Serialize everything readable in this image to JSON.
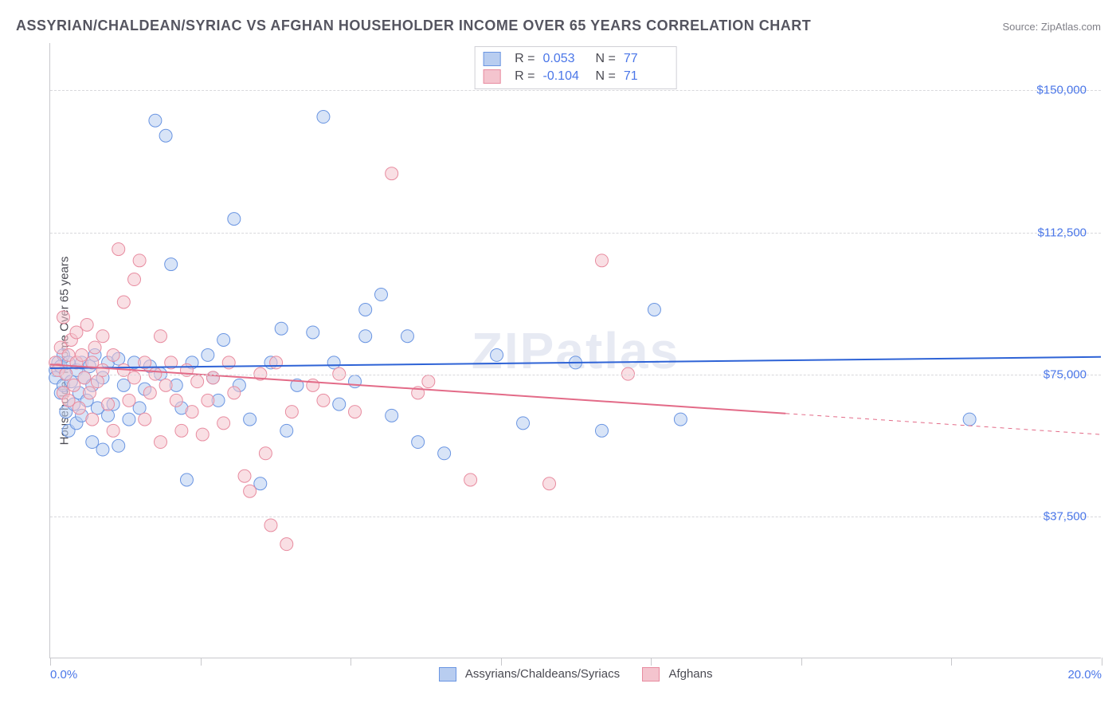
{
  "title": "ASSYRIAN/CHALDEAN/SYRIAC VS AFGHAN HOUSEHOLDER INCOME OVER 65 YEARS CORRELATION CHART",
  "source_label": "Source: ZipAtlas.com",
  "watermark_text": "ZIPatlas",
  "ylabel": "Householder Income Over 65 years",
  "chart": {
    "type": "scatter",
    "xlim": [
      0,
      20
    ],
    "ylim": [
      0,
      162500
    ],
    "xunit": "%",
    "xtick_labels": [
      "0.0%",
      "20.0%"
    ],
    "xtick_positions": [
      0,
      20
    ],
    "xtick_minor_positions": [
      0,
      2.86,
      5.71,
      8.57,
      11.43,
      14.29,
      17.14,
      20
    ],
    "ytick_labels": [
      "$37,500",
      "$75,000",
      "$112,500",
      "$150,000"
    ],
    "ytick_positions": [
      37500,
      75000,
      112500,
      150000
    ],
    "background_color": "#ffffff",
    "grid_color": "#d8d8dc",
    "grid_style": "dashed",
    "axis_color": "#c8c8cc",
    "axis_label_color": "#4a76e8",
    "title_color": "#555560",
    "title_fontsize": 18,
    "label_fontsize": 15,
    "marker_radius": 8,
    "marker_opacity": 0.55,
    "line_width": 2,
    "series": [
      {
        "name": "Assyrians/Chaldeans/Syriacs",
        "color_fill": "#b8cdf0",
        "color_stroke": "#6a95e2",
        "line_color": "#2e63d6",
        "R": "0.053",
        "N": "77",
        "trend_line": {
          "x1": 0,
          "y1": 76500,
          "x2": 20,
          "y2": 79500
        },
        "trend_dash_from_x": null,
        "points": [
          [
            0.1,
            76000
          ],
          [
            0.1,
            74000
          ],
          [
            0.15,
            78000
          ],
          [
            0.2,
            70000
          ],
          [
            0.2,
            77000
          ],
          [
            0.25,
            72000
          ],
          [
            0.25,
            80000
          ],
          [
            0.3,
            65000
          ],
          [
            0.3,
            75000
          ],
          [
            0.35,
            60000
          ],
          [
            0.35,
            78000
          ],
          [
            0.4,
            73000
          ],
          [
            0.45,
            67000
          ],
          [
            0.5,
            62000
          ],
          [
            0.5,
            76000
          ],
          [
            0.55,
            70000
          ],
          [
            0.6,
            64000
          ],
          [
            0.6,
            78000
          ],
          [
            0.65,
            74000
          ],
          [
            0.7,
            68000
          ],
          [
            0.75,
            77000
          ],
          [
            0.8,
            57000
          ],
          [
            0.8,
            72000
          ],
          [
            0.85,
            80000
          ],
          [
            0.9,
            66000
          ],
          [
            1.0,
            55000
          ],
          [
            1.0,
            74000
          ],
          [
            1.1,
            64000
          ],
          [
            1.1,
            78000
          ],
          [
            1.2,
            67000
          ],
          [
            1.3,
            56000
          ],
          [
            1.3,
            79000
          ],
          [
            1.4,
            72000
          ],
          [
            1.5,
            63000
          ],
          [
            1.6,
            78000
          ],
          [
            1.7,
            66000
          ],
          [
            1.8,
            71000
          ],
          [
            1.9,
            77000
          ],
          [
            2.0,
            142000
          ],
          [
            2.1,
            75000
          ],
          [
            2.2,
            138000
          ],
          [
            2.3,
            104000
          ],
          [
            2.4,
            72000
          ],
          [
            2.5,
            66000
          ],
          [
            2.6,
            47000
          ],
          [
            2.7,
            78000
          ],
          [
            3.0,
            80000
          ],
          [
            3.1,
            74000
          ],
          [
            3.2,
            68000
          ],
          [
            3.3,
            84000
          ],
          [
            3.5,
            116000
          ],
          [
            3.6,
            72000
          ],
          [
            3.8,
            63000
          ],
          [
            4.0,
            46000
          ],
          [
            4.2,
            78000
          ],
          [
            4.4,
            87000
          ],
          [
            4.5,
            60000
          ],
          [
            4.7,
            72000
          ],
          [
            5.0,
            86000
          ],
          [
            5.2,
            143000
          ],
          [
            5.4,
            78000
          ],
          [
            5.5,
            67000
          ],
          [
            5.8,
            73000
          ],
          [
            6.0,
            85000
          ],
          [
            6.0,
            92000
          ],
          [
            6.3,
            96000
          ],
          [
            6.5,
            64000
          ],
          [
            6.8,
            85000
          ],
          [
            7.0,
            57000
          ],
          [
            7.5,
            54000
          ],
          [
            8.5,
            80000
          ],
          [
            9.0,
            62000
          ],
          [
            10.0,
            78000
          ],
          [
            10.5,
            60000
          ],
          [
            11.5,
            92000
          ],
          [
            12.0,
            63000
          ],
          [
            17.5,
            63000
          ]
        ]
      },
      {
        "name": "Afghans",
        "color_fill": "#f4c4ce",
        "color_stroke": "#e88ca0",
        "line_color": "#e36b88",
        "R": "-0.104",
        "N": "71",
        "trend_line": {
          "x1": 0,
          "y1": 77500,
          "x2": 20,
          "y2": 59000
        },
        "trend_dash_from_x": 14,
        "points": [
          [
            0.1,
            78000
          ],
          [
            0.15,
            76000
          ],
          [
            0.2,
            82000
          ],
          [
            0.25,
            70000
          ],
          [
            0.25,
            90000
          ],
          [
            0.3,
            75000
          ],
          [
            0.35,
            80000
          ],
          [
            0.35,
            68000
          ],
          [
            0.4,
            84000
          ],
          [
            0.45,
            72000
          ],
          [
            0.5,
            86000
          ],
          [
            0.5,
            78000
          ],
          [
            0.55,
            66000
          ],
          [
            0.6,
            80000
          ],
          [
            0.65,
            74000
          ],
          [
            0.7,
            88000
          ],
          [
            0.75,
            70000
          ],
          [
            0.8,
            78000
          ],
          [
            0.8,
            63000
          ],
          [
            0.85,
            82000
          ],
          [
            0.9,
            73000
          ],
          [
            1.0,
            76000
          ],
          [
            1.0,
            85000
          ],
          [
            1.1,
            67000
          ],
          [
            1.2,
            80000
          ],
          [
            1.2,
            60000
          ],
          [
            1.3,
            108000
          ],
          [
            1.4,
            76000
          ],
          [
            1.4,
            94000
          ],
          [
            1.5,
            68000
          ],
          [
            1.6,
            100000
          ],
          [
            1.6,
            74000
          ],
          [
            1.7,
            105000
          ],
          [
            1.8,
            63000
          ],
          [
            1.8,
            78000
          ],
          [
            1.9,
            70000
          ],
          [
            2.0,
            75000
          ],
          [
            2.1,
            85000
          ],
          [
            2.1,
            57000
          ],
          [
            2.2,
            72000
          ],
          [
            2.3,
            78000
          ],
          [
            2.4,
            68000
          ],
          [
            2.5,
            60000
          ],
          [
            2.6,
            76000
          ],
          [
            2.7,
            65000
          ],
          [
            2.8,
            73000
          ],
          [
            2.9,
            59000
          ],
          [
            3.0,
            68000
          ],
          [
            3.1,
            74000
          ],
          [
            3.3,
            62000
          ],
          [
            3.4,
            78000
          ],
          [
            3.5,
            70000
          ],
          [
            3.7,
            48000
          ],
          [
            3.8,
            44000
          ],
          [
            4.0,
            75000
          ],
          [
            4.1,
            54000
          ],
          [
            4.2,
            35000
          ],
          [
            4.3,
            78000
          ],
          [
            4.5,
            30000
          ],
          [
            4.6,
            65000
          ],
          [
            5.0,
            72000
          ],
          [
            5.2,
            68000
          ],
          [
            5.5,
            75000
          ],
          [
            5.8,
            65000
          ],
          [
            6.5,
            128000
          ],
          [
            7.0,
            70000
          ],
          [
            7.2,
            73000
          ],
          [
            8.0,
            47000
          ],
          [
            9.5,
            46000
          ],
          [
            10.5,
            105000
          ],
          [
            11.0,
            75000
          ]
        ]
      }
    ]
  },
  "bottom_legend": {
    "items": [
      {
        "label": "Assyrians/Chaldeans/Syriacs",
        "fill": "#b8cdf0",
        "stroke": "#6a95e2"
      },
      {
        "label": "Afghans",
        "fill": "#f4c4ce",
        "stroke": "#e88ca0"
      }
    ]
  },
  "stat_legend": {
    "r_label": "R  =",
    "n_label": "N  ="
  }
}
